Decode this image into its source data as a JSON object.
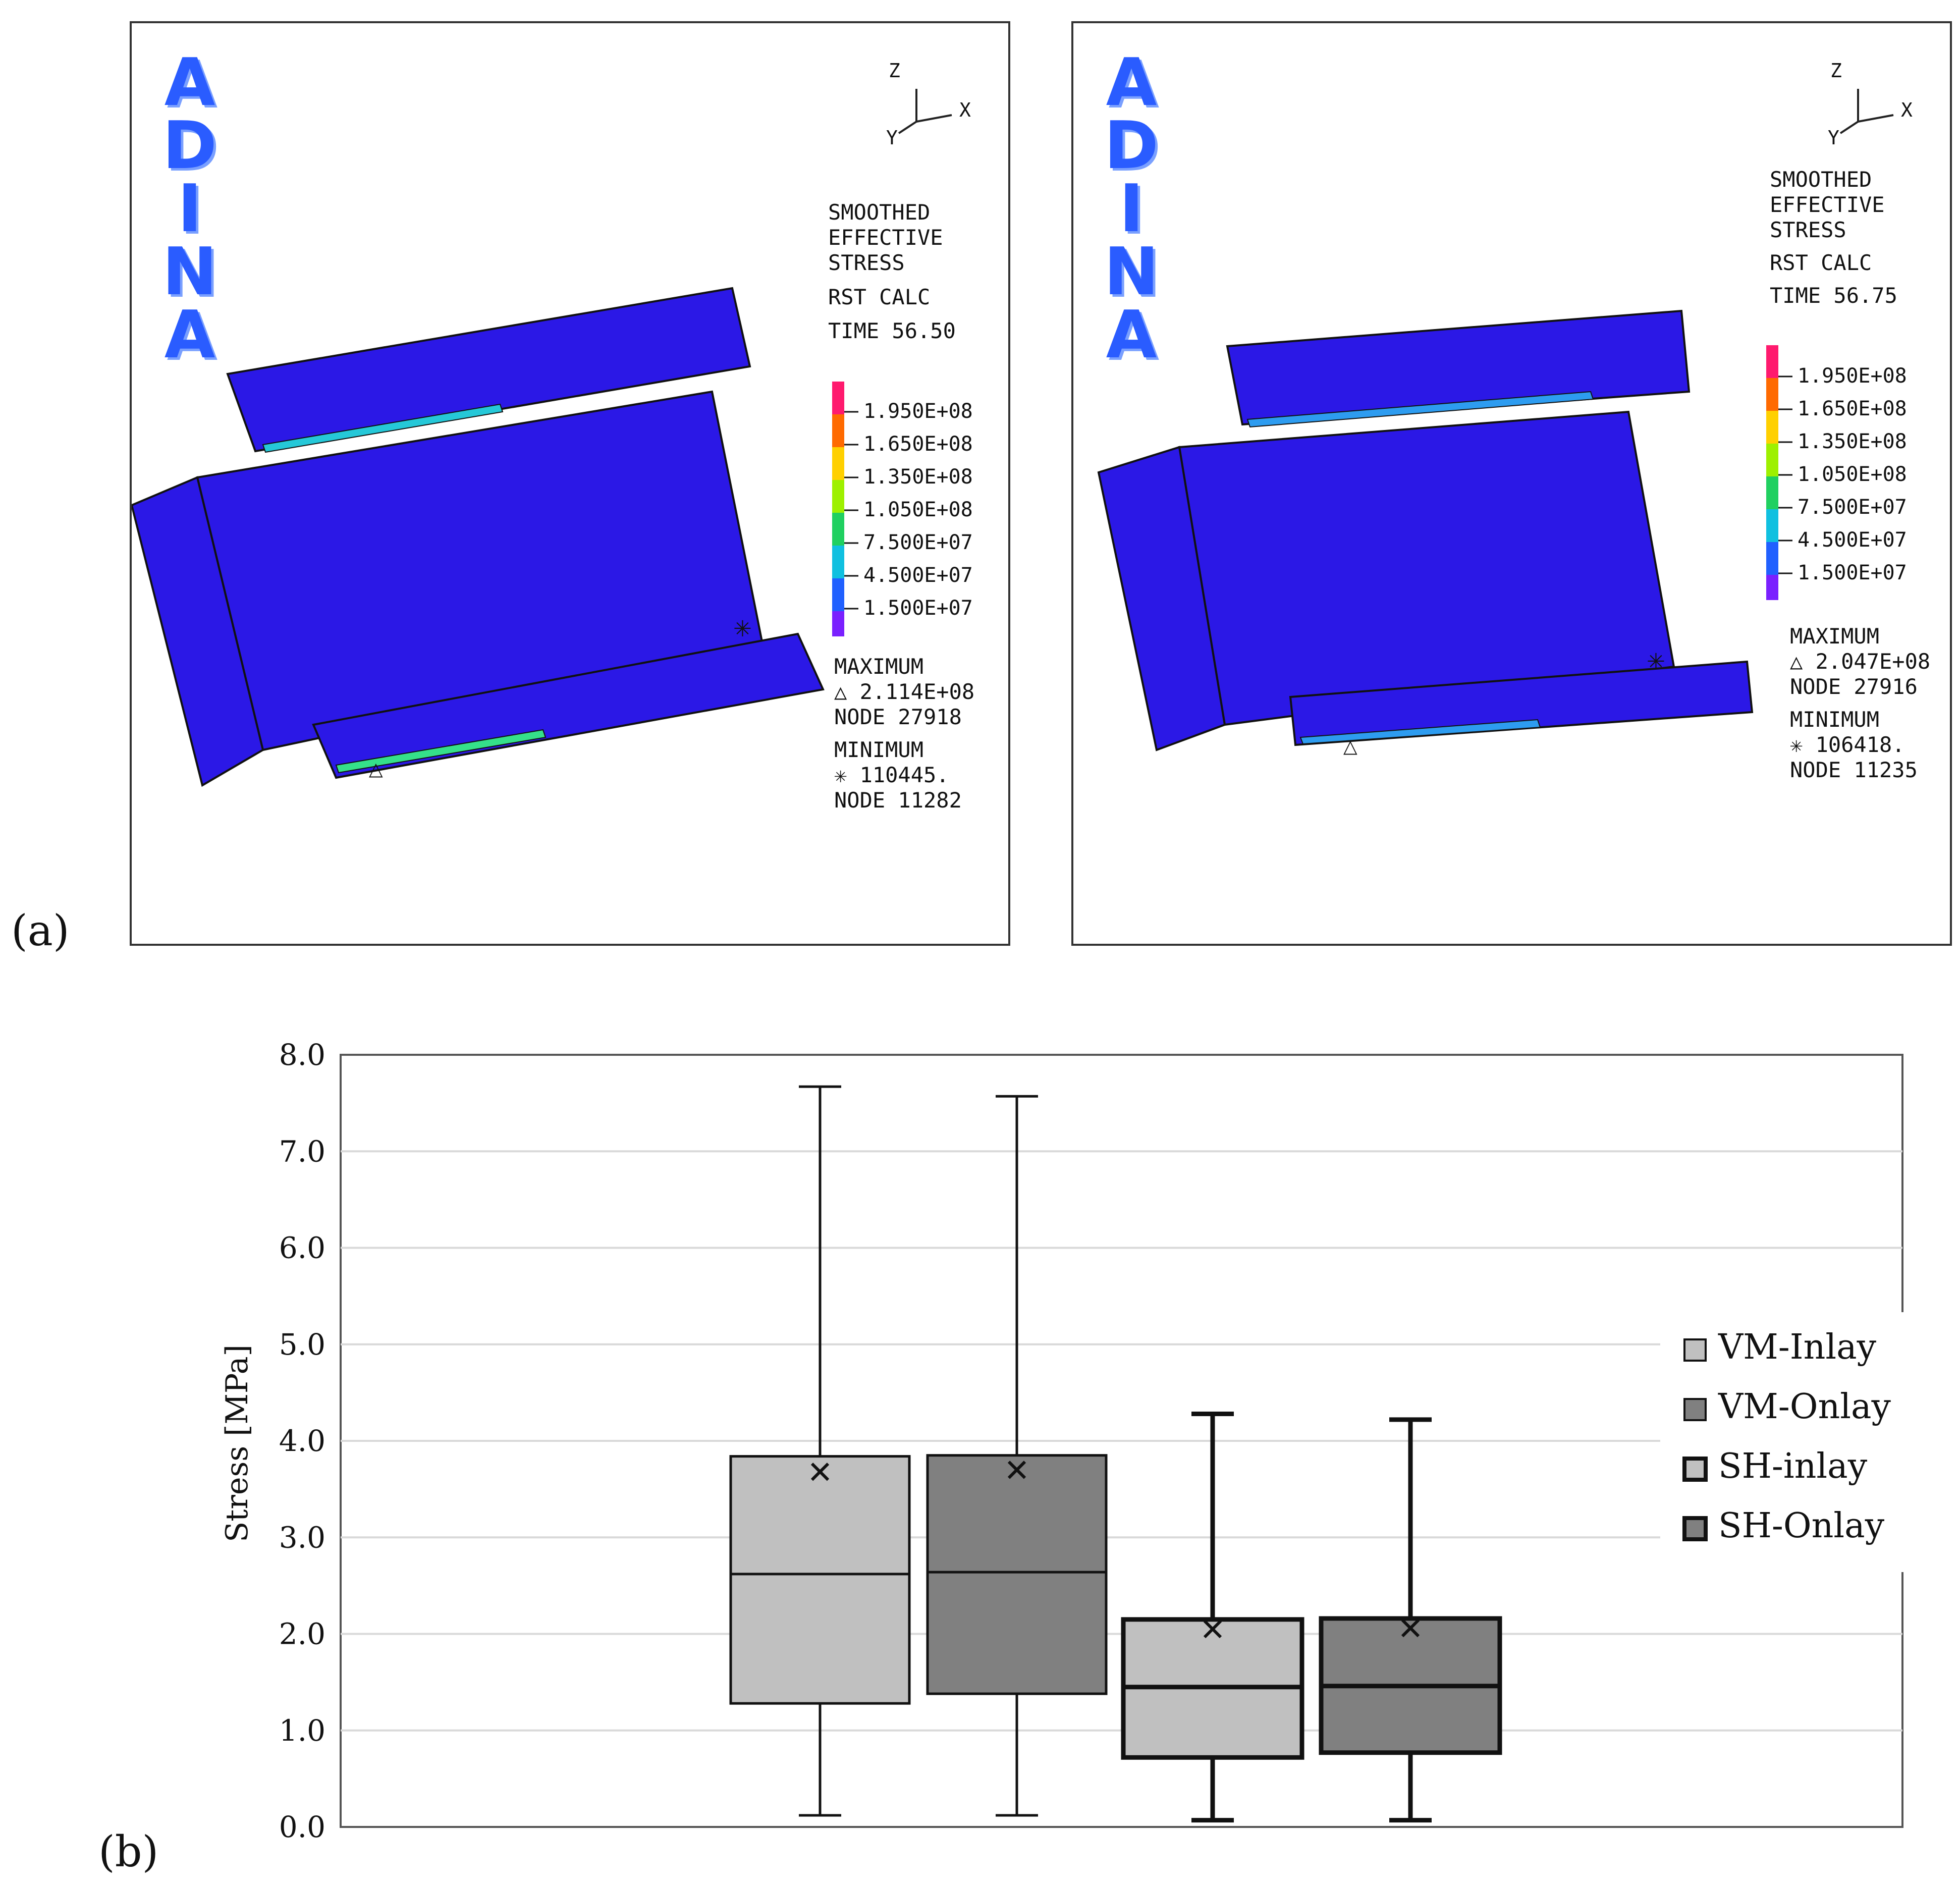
{
  "panels": [
    {
      "adina": [
        "A",
        "D",
        "I",
        "N",
        "A"
      ],
      "axes": {
        "z": "Z",
        "y": "Y",
        "x": "X"
      },
      "result_title": [
        "SMOOTHED",
        "EFFECTIVE",
        "STRESS"
      ],
      "result_calc": "RST CALC",
      "time": "TIME 56.50",
      "scale_labels": [
        "1.950E+08",
        "1.650E+08",
        "1.350E+08",
        "1.050E+08",
        "7.500E+07",
        "4.500E+07",
        "1.500E+07"
      ],
      "maximum_label": "MAXIMUM",
      "maximum_value": "△ 2.114E+08",
      "maximum_node": "NODE 27918",
      "minimum_label": "MINIMUM",
      "minimum_value": "✳ 110445.",
      "minimum_node": "NODE 11282"
    },
    {
      "adina": [
        "A",
        "D",
        "I",
        "N",
        "A"
      ],
      "axes": {
        "z": "Z",
        "y": "Y",
        "x": "X"
      },
      "result_title": [
        "SMOOTHED",
        "EFFECTIVE",
        "STRESS"
      ],
      "result_calc": "RST CALC",
      "time": "TIME 56.75",
      "scale_labels": [
        "1.950E+08",
        "1.650E+08",
        "1.350E+08",
        "1.050E+08",
        "7.500E+07",
        "4.500E+07",
        "1.500E+07"
      ],
      "maximum_label": "MAXIMUM",
      "maximum_value": "△ 2.047E+08",
      "maximum_node": "NODE 27916",
      "minimum_label": "MINIMUM",
      "minimum_value": "✳ 106418.",
      "minimum_node": "NODE 11235"
    }
  ],
  "panel_tags": {
    "a": "(a)",
    "b": "(b)"
  },
  "colors": {
    "model_blue": "#2b18e6",
    "adina_blue": "#2a5cff",
    "box_light": "#c0c0c0",
    "box_dark": "#808080"
  },
  "chart_data": {
    "type": "boxplot",
    "title": "",
    "xlabel": "",
    "ylabel": "Stress [MPa]",
    "ylim": [
      0,
      8
    ],
    "yticks": [
      "0.0",
      "1.0",
      "2.0",
      "3.0",
      "4.0",
      "5.0",
      "6.0",
      "7.0",
      "8.0"
    ],
    "grid": true,
    "legend_position": "right",
    "series": [
      {
        "name": "VM-Inlay",
        "min": 0.12,
        "q1": 1.28,
        "median": 2.62,
        "q3": 3.84,
        "max": 7.67,
        "mean": 3.68,
        "fill": "#c0c0c0",
        "bold": false
      },
      {
        "name": "VM-Onlay",
        "min": 0.12,
        "q1": 1.38,
        "median": 2.64,
        "q3": 3.85,
        "max": 7.57,
        "mean": 3.7,
        "fill": "#808080",
        "bold": false
      },
      {
        "name": "SH-inlay",
        "min": 0.07,
        "q1": 0.72,
        "median": 1.45,
        "q3": 2.15,
        "max": 4.28,
        "mean": 2.05,
        "fill": "#c0c0c0",
        "bold": true
      },
      {
        "name": "SH-Onlay",
        "min": 0.07,
        "q1": 0.77,
        "median": 1.46,
        "q3": 2.16,
        "max": 4.22,
        "mean": 2.06,
        "fill": "#808080",
        "bold": true
      }
    ]
  }
}
